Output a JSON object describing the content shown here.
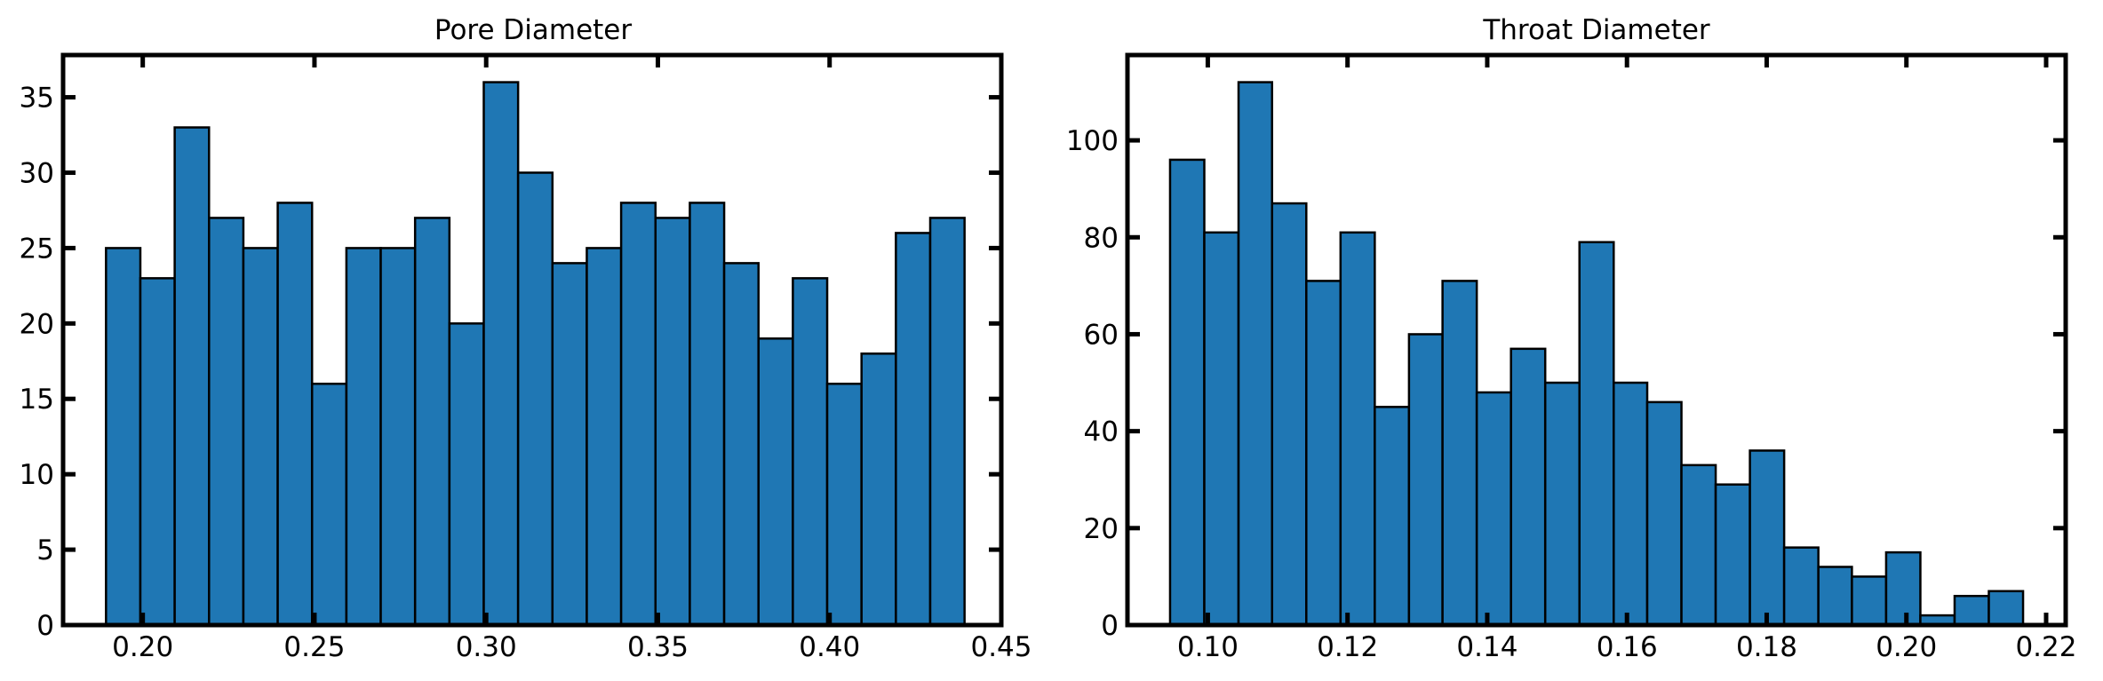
{
  "chart_data": [
    {
      "type": "bar",
      "title": "Pore Diameter",
      "xlabel": "",
      "ylabel": "",
      "bin_edges": [
        0.1893,
        0.1993,
        0.2093,
        0.2193,
        0.2293,
        0.2393,
        0.2493,
        0.2593,
        0.2693,
        0.2793,
        0.2893,
        0.2993,
        0.3093,
        0.3193,
        0.3293,
        0.3393,
        0.3493,
        0.3593,
        0.3693,
        0.3793,
        0.3893,
        0.3993,
        0.4093,
        0.4193,
        0.4293,
        0.4393
      ],
      "values": [
        25,
        23,
        33,
        27,
        25,
        28,
        16,
        25,
        25,
        27,
        20,
        36,
        30,
        24,
        25,
        28,
        27,
        28,
        24,
        19,
        23,
        16,
        18,
        26,
        27
      ],
      "bar_color": "#1f77b4",
      "xlim": [
        0.1768,
        0.45
      ],
      "ylim": [
        0,
        37.8
      ],
      "xticks": [
        0.2,
        0.25,
        0.3,
        0.35,
        0.4,
        0.45
      ],
      "xtick_labels": [
        "0.20",
        "0.25",
        "0.30",
        "0.35",
        "0.40",
        "0.45"
      ],
      "yticks": [
        0,
        5,
        10,
        15,
        20,
        25,
        30,
        35
      ],
      "ytick_labels": [
        "0",
        "5",
        "10",
        "15",
        "20",
        "25",
        "30",
        "35"
      ]
    },
    {
      "type": "bar",
      "title": "Throat Diameter",
      "xlabel": "",
      "ylabel": "",
      "bin_edges": [
        0.0946,
        0.0995,
        0.1044,
        0.1092,
        0.1141,
        0.119,
        0.1239,
        0.1288,
        0.1336,
        0.1385,
        0.1434,
        0.1483,
        0.1532,
        0.1581,
        0.1629,
        0.1678,
        0.1727,
        0.1776,
        0.1825,
        0.1874,
        0.1922,
        0.1971,
        0.202,
        0.2069,
        0.2118,
        0.2167
      ],
      "values": [
        96,
        81,
        112,
        87,
        71,
        81,
        45,
        60,
        71,
        48,
        57,
        50,
        79,
        50,
        46,
        33,
        29,
        36,
        16,
        12,
        10,
        15,
        2,
        6,
        7
      ],
      "bar_color": "#1f77b4",
      "xlim": [
        0.0885,
        0.2228
      ],
      "ylim": [
        0,
        117.6
      ],
      "xticks": [
        0.1,
        0.12,
        0.14,
        0.16,
        0.18,
        0.2,
        0.22
      ],
      "xtick_labels": [
        "0.10",
        "0.12",
        "0.14",
        "0.16",
        "0.18",
        "0.20",
        "0.22"
      ],
      "yticks": [
        0,
        20,
        40,
        60,
        80,
        100
      ],
      "ytick_labels": [
        "0",
        "20",
        "40",
        "60",
        "80",
        "100"
      ]
    }
  ]
}
